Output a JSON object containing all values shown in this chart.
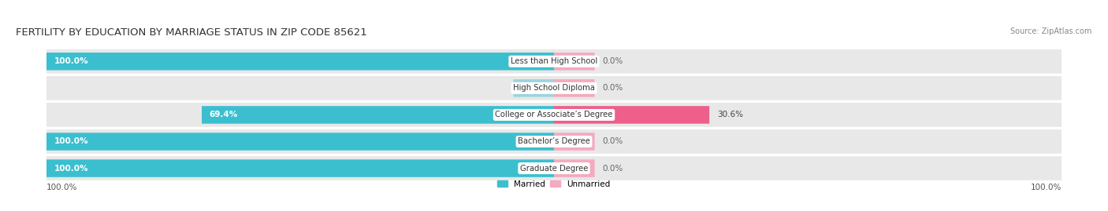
{
  "title": "FERTILITY BY EDUCATION BY MARRIAGE STATUS IN ZIP CODE 85621",
  "source": "Source: ZipAtlas.com",
  "categories": [
    "Less than High School",
    "High School Diploma",
    "College or Associate’s Degree",
    "Bachelor’s Degree",
    "Graduate Degree"
  ],
  "married": [
    100.0,
    0.0,
    69.4,
    100.0,
    100.0
  ],
  "unmarried": [
    0.0,
    0.0,
    30.6,
    0.0,
    0.0
  ],
  "married_color": "#3BBFCF",
  "married_color_light": "#9DD4DF",
  "unmarried_color_light": "#F4AABF",
  "unmarried_color_strong": "#EE5F8A",
  "background_color": "#ffffff",
  "row_bg_color": "#e8e8e8",
  "axis_min": -100,
  "axis_max": 100,
  "legend_married": "Married",
  "legend_unmarried": "Unmarried",
  "title_fontsize": 9.5,
  "label_fontsize": 7.5,
  "tick_fontsize": 7.5,
  "source_fontsize": 7
}
